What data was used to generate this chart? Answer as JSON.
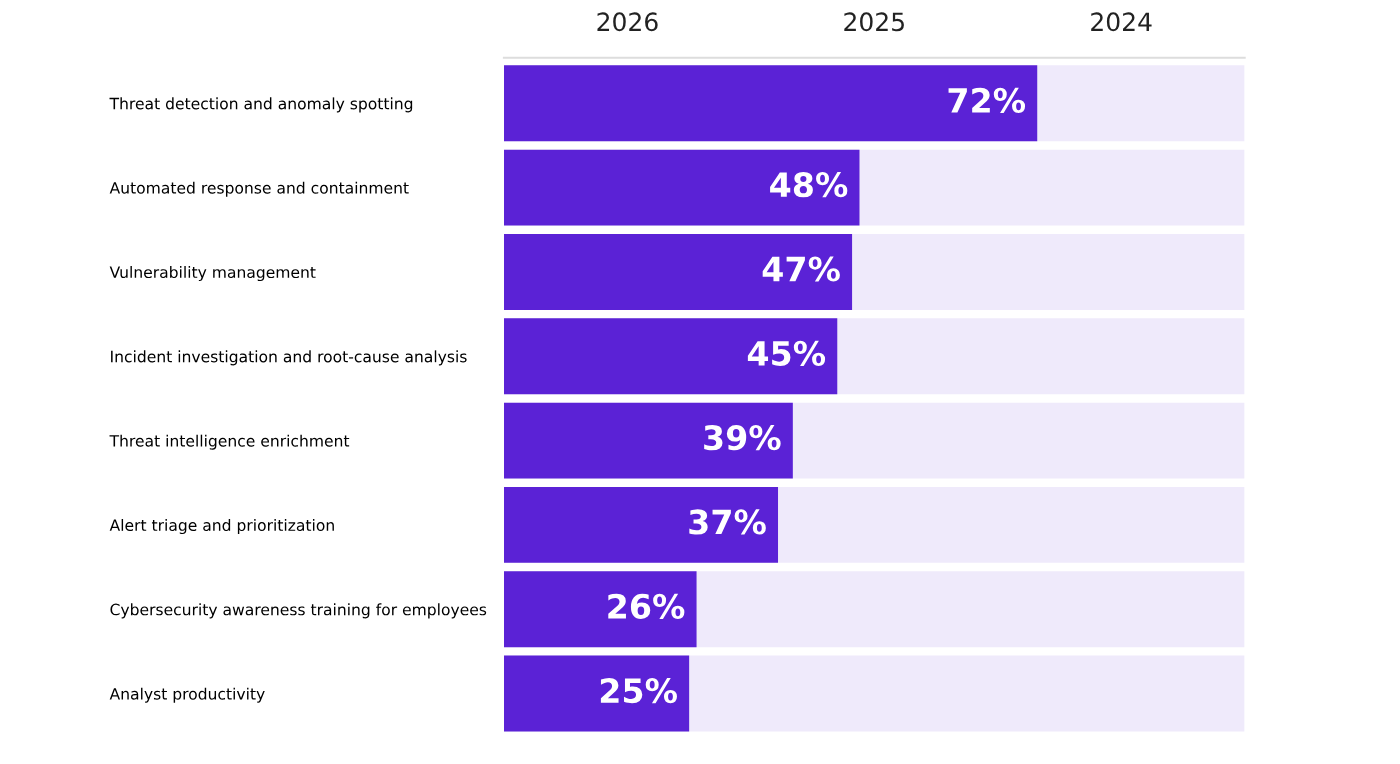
{
  "chart_data": {
    "type": "bar",
    "orientation": "horizontal",
    "categories": [
      "Threat detection and anomaly spotting",
      "Automated response and containment",
      "Vulnerability management",
      "Incident investigation and root-cause analysis",
      "Threat intelligence enrichment",
      "Alert triage and prioritization",
      "Cybersecurity awareness training for employees",
      "Analyst productivity"
    ],
    "values": [
      72,
      48,
      47,
      45,
      39,
      37,
      26,
      25
    ],
    "value_labels": [
      "72%",
      "48%",
      "47%",
      "45%",
      "39%",
      "37%",
      "26%",
      "25%"
    ],
    "color": "#5b22d6",
    "xlim": [
      0,
      100
    ],
    "tick_labels": "y",
    "grid": false,
    "legend": false,
    "annotations": [
      "2026",
      "2025",
      "2024"
    ]
  }
}
